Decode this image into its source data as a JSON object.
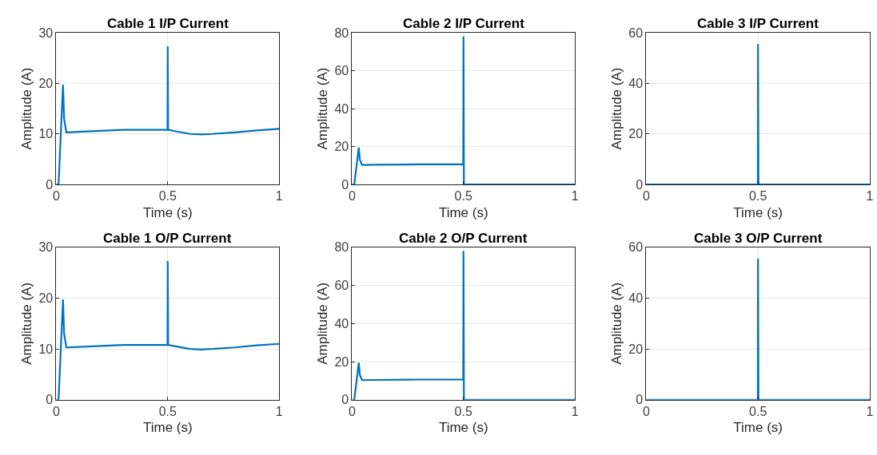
{
  "chart_data": [
    {
      "type": "line",
      "title": "Cable 1 I/P Current",
      "xlabel": "Time (s)",
      "ylabel": "Amplitude (A)",
      "xlim": [
        0,
        1
      ],
      "xticks": [
        0,
        0.5,
        1
      ],
      "ylim": [
        0,
        30
      ],
      "yticks": [
        0,
        10,
        20,
        30
      ],
      "grid": true,
      "line_style": "solid",
      "series": [
        {
          "color": "#0072bd",
          "x": [
            0,
            0.01,
            0.03,
            0.035,
            0.045,
            0.1,
            0.2,
            0.3,
            0.4,
            0.499,
            0.5,
            0.502,
            0.55,
            0.6,
            0.65,
            0.7,
            0.8,
            0.9,
            1.0
          ],
          "values": [
            0,
            0,
            19.7,
            13,
            10.3,
            10.4,
            10.6,
            10.8,
            10.8,
            10.8,
            27.3,
            10.8,
            10.4,
            10.0,
            9.9,
            10.0,
            10.3,
            10.7,
            11.0
          ]
        }
      ]
    },
    {
      "type": "line",
      "title": "Cable 2 I/P Current",
      "xlabel": "Time (s)",
      "ylabel": "Amplitude (A)",
      "xlim": [
        0,
        1
      ],
      "xticks": [
        0,
        0.5,
        1
      ],
      "ylim": [
        0,
        80
      ],
      "yticks": [
        0,
        20,
        40,
        60,
        80
      ],
      "grid": true,
      "line_style": "solid",
      "series": [
        {
          "color": "#0072bd",
          "x": [
            0,
            0.01,
            0.03,
            0.035,
            0.045,
            0.1,
            0.3,
            0.499,
            0.5,
            0.502,
            1.0
          ],
          "values": [
            0,
            0,
            19.5,
            13,
            10.3,
            10.4,
            10.6,
            10.6,
            78,
            0,
            0
          ]
        }
      ]
    },
    {
      "type": "line",
      "title": "Cable 3 I/P Current",
      "xlabel": "Time (s)",
      "ylabel": "Amplitude (A)",
      "xlim": [
        0,
        1
      ],
      "xticks": [
        0,
        0.5,
        1
      ],
      "ylim": [
        0,
        60
      ],
      "yticks": [
        0,
        20,
        40,
        60
      ],
      "grid": true,
      "line_style": "solid",
      "series": [
        {
          "color": "#0072bd",
          "x": [
            0,
            0.499,
            0.5,
            0.502,
            1.0
          ],
          "values": [
            0,
            0,
            55.5,
            0,
            0
          ]
        }
      ]
    },
    {
      "type": "line",
      "title": "Cable 1 O/P Current",
      "xlabel": "Time (s)",
      "ylabel": "Amplitude (A)",
      "xlim": [
        0,
        1
      ],
      "xticks": [
        0,
        0.5,
        1
      ],
      "ylim": [
        0,
        30
      ],
      "yticks": [
        0,
        10,
        20,
        30
      ],
      "grid": true,
      "line_style": "solid",
      "series": [
        {
          "color": "#0072bd",
          "x": [
            0,
            0.01,
            0.03,
            0.035,
            0.045,
            0.1,
            0.2,
            0.3,
            0.4,
            0.499,
            0.5,
            0.502,
            0.55,
            0.6,
            0.65,
            0.7,
            0.8,
            0.9,
            1.0
          ],
          "values": [
            0,
            0,
            19.7,
            13,
            10.3,
            10.4,
            10.6,
            10.8,
            10.8,
            10.8,
            27.3,
            10.8,
            10.4,
            10.0,
            9.9,
            10.0,
            10.3,
            10.7,
            11.0
          ]
        }
      ]
    },
    {
      "type": "line",
      "title": "Cable 2 O/P Current",
      "xlabel": "Time (s)",
      "ylabel": "Amplitude (A)",
      "xlim": [
        0,
        1
      ],
      "xticks": [
        0,
        0.5,
        1
      ],
      "ylim": [
        0,
        80
      ],
      "yticks": [
        0,
        20,
        40,
        60,
        80
      ],
      "grid": true,
      "line_style": "solid",
      "series": [
        {
          "color": "#0072bd",
          "x": [
            0,
            0.01,
            0.03,
            0.035,
            0.045,
            0.1,
            0.3,
            0.499,
            0.5,
            0.502,
            1.0
          ],
          "values": [
            0,
            0,
            19.5,
            13,
            10.3,
            10.4,
            10.6,
            10.6,
            78,
            0,
            0
          ]
        }
      ]
    },
    {
      "type": "line",
      "title": "Cable 3 O/P Current",
      "xlabel": "Time (s)",
      "ylabel": "Amplitude (A)",
      "xlim": [
        0,
        1
      ],
      "xticks": [
        0,
        0.5,
        1
      ],
      "ylim": [
        0,
        60
      ],
      "yticks": [
        0,
        20,
        40,
        60
      ],
      "grid": true,
      "line_style": "solid",
      "series": [
        {
          "color": "#0072bd",
          "x": [
            0,
            0.499,
            0.5,
            0.502,
            1.0
          ],
          "values": [
            0,
            0,
            55.5,
            0,
            0
          ]
        }
      ]
    }
  ]
}
